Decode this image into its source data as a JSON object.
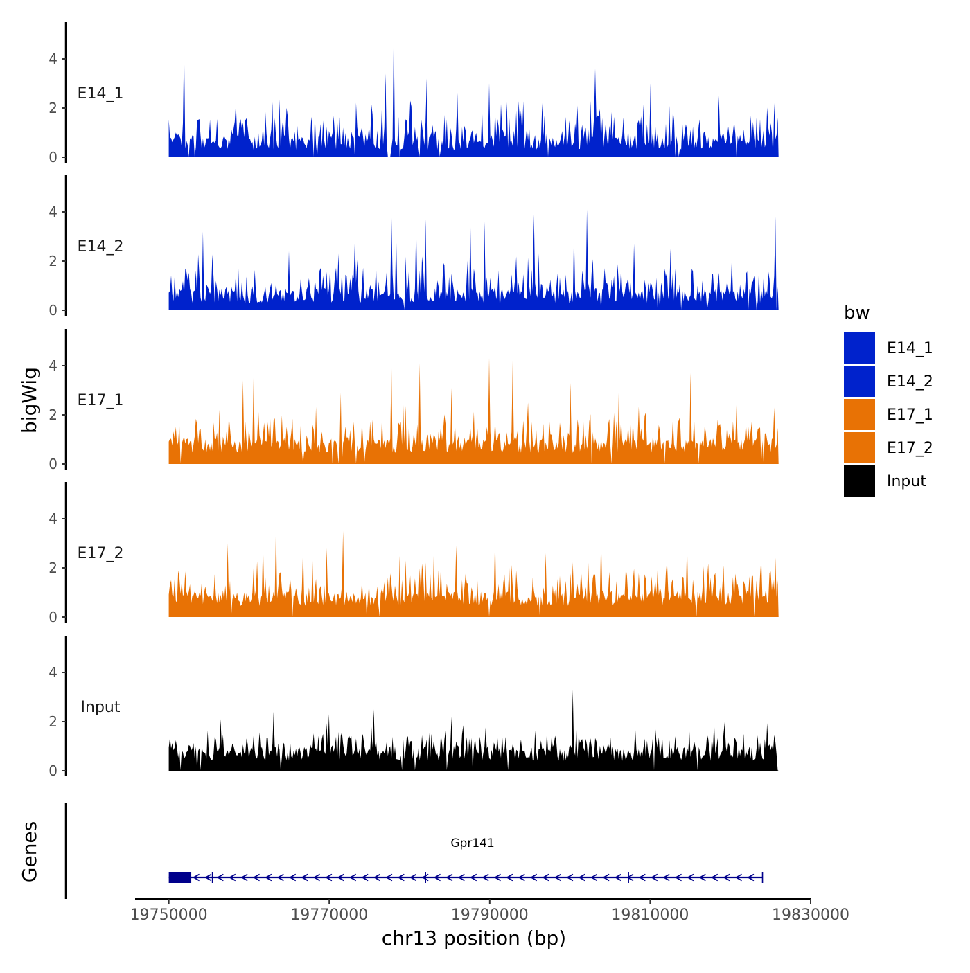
{
  "chart_data": {
    "type": "area",
    "xlabel": "chr13 position (bp)",
    "ylabel": "bigWig",
    "gene_panel_label": "Genes",
    "xlim": [
      19745800,
      19830000
    ],
    "x_ticks": [
      19750000,
      19770000,
      19790000,
      19810000,
      19830000
    ],
    "x_tick_labels": [
      "19750000",
      "19770000",
      "19790000",
      "19810000",
      "19830000"
    ],
    "ylim": [
      0,
      5.5
    ],
    "y_ticks": [
      0,
      2,
      4
    ],
    "y_tick_labels": [
      "0",
      "2",
      "4"
    ],
    "data_range": [
      19750000,
      19826000
    ],
    "legend": {
      "title": "bw",
      "items": [
        {
          "label": "E14_1",
          "color": "#0022CC"
        },
        {
          "label": "E14_2",
          "color": "#0022CC"
        },
        {
          "label": "E17_1",
          "color": "#E87205"
        },
        {
          "label": "E17_2",
          "color": "#E87205"
        },
        {
          "label": "Input",
          "color": "#000000"
        }
      ]
    },
    "series": [
      {
        "name": "E14_1",
        "color": "#0022CC",
        "peaks": [
          {
            "x": 19751900,
            "y": 4.5
          },
          {
            "x": 19777000,
            "y": 3.4
          },
          {
            "x": 19778100,
            "y": 5.2
          },
          {
            "x": 19782200,
            "y": 3.2
          },
          {
            "x": 19786000,
            "y": 2.6
          },
          {
            "x": 19790000,
            "y": 3.0
          },
          {
            "x": 19796500,
            "y": 2.2
          },
          {
            "x": 19801000,
            "y": 2.1
          },
          {
            "x": 19803100,
            "y": 3.6
          },
          {
            "x": 19810000,
            "y": 3.0
          },
          {
            "x": 19818500,
            "y": 2.5
          },
          {
            "x": 19825500,
            "y": 2.2
          }
        ]
      },
      {
        "name": "E14_2",
        "color": "#0022CC",
        "peaks": [
          {
            "x": 19754200,
            "y": 3.2
          },
          {
            "x": 19765000,
            "y": 2.4
          },
          {
            "x": 19773200,
            "y": 2.9
          },
          {
            "x": 19777800,
            "y": 3.9
          },
          {
            "x": 19778400,
            "y": 3.2
          },
          {
            "x": 19780800,
            "y": 3.5
          },
          {
            "x": 19782000,
            "y": 3.7
          },
          {
            "x": 19787600,
            "y": 3.7
          },
          {
            "x": 19789300,
            "y": 3.6
          },
          {
            "x": 19795500,
            "y": 3.9
          },
          {
            "x": 19800500,
            "y": 3.2
          },
          {
            "x": 19802100,
            "y": 4.1
          },
          {
            "x": 19808000,
            "y": 2.7
          },
          {
            "x": 19812500,
            "y": 2.5
          },
          {
            "x": 19825600,
            "y": 3.8
          }
        ]
      },
      {
        "name": "E17_1",
        "color": "#E87205",
        "peaks": [
          {
            "x": 19759200,
            "y": 3.4
          },
          {
            "x": 19760600,
            "y": 3.5
          },
          {
            "x": 19771500,
            "y": 2.9
          },
          {
            "x": 19777700,
            "y": 4.1
          },
          {
            "x": 19781200,
            "y": 4.1
          },
          {
            "x": 19785200,
            "y": 3.1
          },
          {
            "x": 19790000,
            "y": 4.3
          },
          {
            "x": 19792900,
            "y": 4.2
          },
          {
            "x": 19800000,
            "y": 3.3
          },
          {
            "x": 19806100,
            "y": 2.9
          },
          {
            "x": 19815000,
            "y": 3.7
          },
          {
            "x": 19825500,
            "y": 2.3
          }
        ]
      },
      {
        "name": "E17_2",
        "color": "#E87205",
        "peaks": [
          {
            "x": 19757400,
            "y": 3.0
          },
          {
            "x": 19761800,
            "y": 3.0
          },
          {
            "x": 19763300,
            "y": 3.8
          },
          {
            "x": 19766800,
            "y": 2.8
          },
          {
            "x": 19769700,
            "y": 2.8
          },
          {
            "x": 19771700,
            "y": 3.5
          },
          {
            "x": 19783000,
            "y": 2.6
          },
          {
            "x": 19785800,
            "y": 2.9
          },
          {
            "x": 19790700,
            "y": 3.3
          },
          {
            "x": 19797000,
            "y": 2.6
          },
          {
            "x": 19803900,
            "y": 3.2
          },
          {
            "x": 19814600,
            "y": 3.0
          },
          {
            "x": 19825600,
            "y": 2.4
          }
        ]
      },
      {
        "name": "Input",
        "color": "#000000",
        "peaks": [
          {
            "x": 19756500,
            "y": 2.1
          },
          {
            "x": 19763000,
            "y": 2.4
          },
          {
            "x": 19770000,
            "y": 2.3
          },
          {
            "x": 19775500,
            "y": 2.5
          },
          {
            "x": 19785200,
            "y": 2.2
          },
          {
            "x": 19800300,
            "y": 3.3
          },
          {
            "x": 19818000,
            "y": 2.0
          }
        ]
      }
    ],
    "genes": [
      {
        "name": "Gpr141",
        "strand": "-",
        "start": 19750000,
        "end": 19824000,
        "exons": [
          [
            19750000,
            19752800
          ]
        ],
        "exon_color": "#00008B"
      }
    ]
  }
}
